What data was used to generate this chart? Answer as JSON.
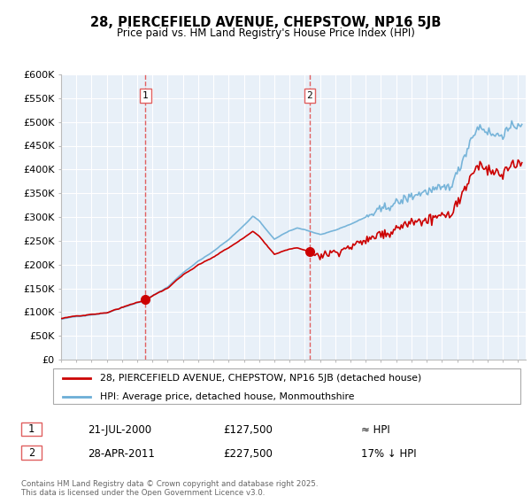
{
  "title_line1": "28, PIERCEFIELD AVENUE, CHEPSTOW, NP16 5JB",
  "title_line2": "Price paid vs. HM Land Registry's House Price Index (HPI)",
  "ylabel_ticks": [
    "£0",
    "£50K",
    "£100K",
    "£150K",
    "£200K",
    "£250K",
    "£300K",
    "£350K",
    "£400K",
    "£450K",
    "£500K",
    "£550K",
    "£600K"
  ],
  "ylim": [
    0,
    600000
  ],
  "xlim_start": 1995.0,
  "xlim_end": 2025.5,
  "sale1_date": 2000.54,
  "sale1_price": 127500,
  "sale1_label": "1",
  "sale2_date": 2011.32,
  "sale2_price": 227500,
  "sale2_label": "2",
  "hpi_color": "#6baed6",
  "hpi_fill_color": "#ddeeff",
  "price_color": "#cc0000",
  "sale_marker_color": "#cc0000",
  "vline_color": "#e06060",
  "legend_label1": "28, PIERCEFIELD AVENUE, CHEPSTOW, NP16 5JB (detached house)",
  "legend_label2": "HPI: Average price, detached house, Monmouthshire",
  "annotation1_date": "21-JUL-2000",
  "annotation1_price": "£127,500",
  "annotation1_rel": "≈ HPI",
  "annotation2_date": "28-APR-2011",
  "annotation2_price": "£227,500",
  "annotation2_rel": "17% ↓ HPI",
  "footnote": "Contains HM Land Registry data © Crown copyright and database right 2025.\nThis data is licensed under the Open Government Licence v3.0.",
  "background_color": "#ffffff",
  "plot_bg_color": "#e8f0f8",
  "grid_color": "#ffffff"
}
